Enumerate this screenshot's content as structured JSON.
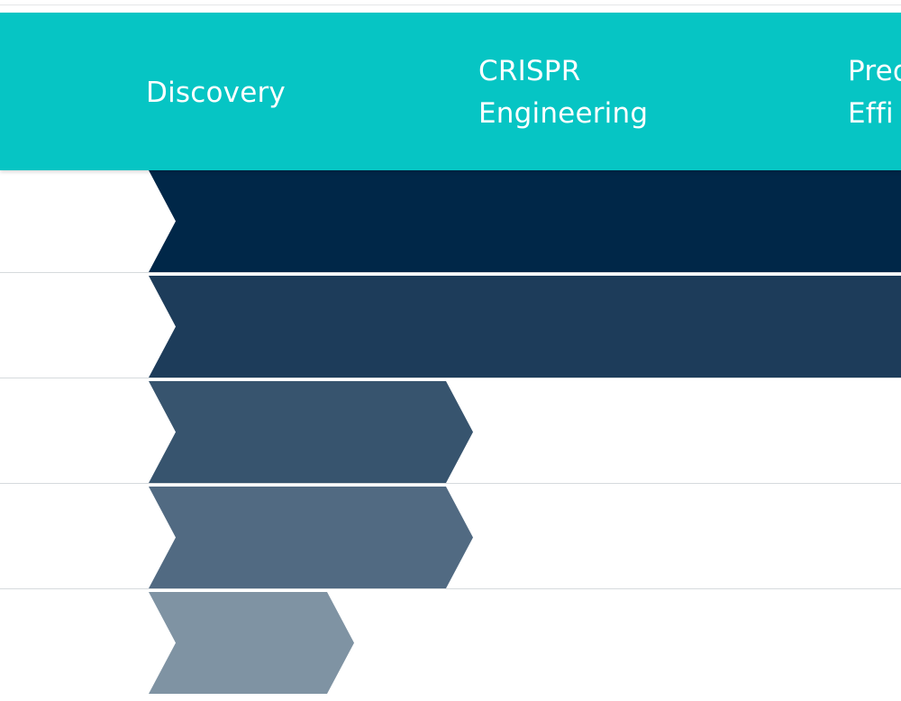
{
  "chart_data": {
    "type": "bar",
    "orientation": "horizontal",
    "phases": [
      "Discovery",
      "CRISPR\nEngineering",
      "Pred\nEffi"
    ],
    "programs": [
      {
        "progress_phases": 3.1,
        "color": "#002748"
      },
      {
        "progress_phases": 3.1,
        "color": "#1d3c5a"
      },
      {
        "progress_phases": 1.0,
        "color": "#37546e"
      },
      {
        "progress_phases": 1.0,
        "color": "#516a82"
      },
      {
        "progress_phases": 0.6,
        "color": "#7f93a3"
      }
    ]
  },
  "colors": {
    "header": "#06c5c4",
    "header_text": "#ffffff",
    "divider": "#d6dadd"
  }
}
